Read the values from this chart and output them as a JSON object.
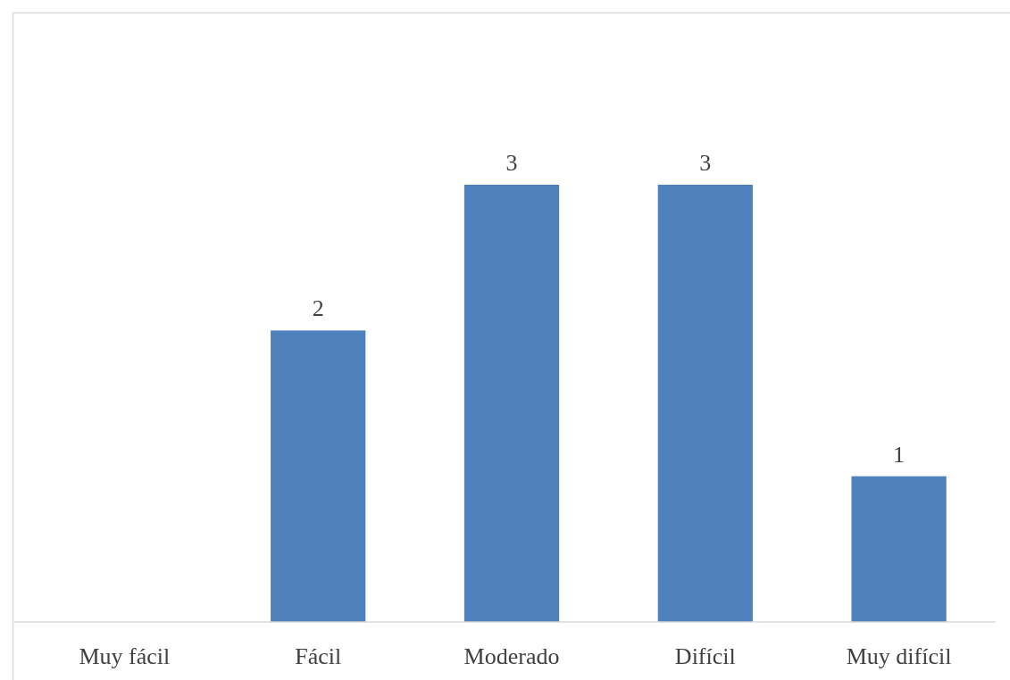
{
  "chart_data": {
    "type": "bar",
    "categories": [
      "Muy fácil",
      "Fácil",
      "Moderado",
      "Difícil",
      "Muy difícil"
    ],
    "values": [
      0,
      2,
      3,
      3,
      1
    ],
    "value_labels": [
      null,
      "2",
      "3",
      "3",
      "1"
    ],
    "color": "#4f81bd"
  }
}
